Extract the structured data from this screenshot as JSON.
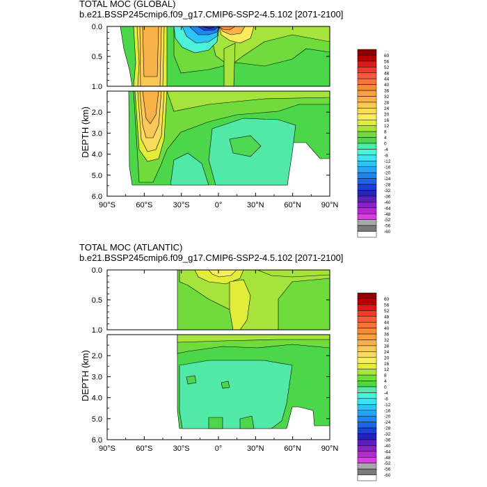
{
  "chart_data": [
    {
      "type": "heatmap",
      "title": "TOTAL MOC (GLOBAL)",
      "subtitle": "b.e21.BSSP245cmip6.f09_g17.CMIP6-SSP2-4.5.102 [2071-2100]",
      "ylabel": "DEPTH (km)",
      "xlabel": "",
      "xlim": [
        -90,
        90
      ],
      "ylim_upper": [
        0.0,
        1.0
      ],
      "ylim_lower": [
        1.0,
        6.0
      ],
      "x_tick_labels": [
        "90°S",
        "60°S",
        "30°S",
        "0°",
        "30°N",
        "60°N",
        "90°N"
      ],
      "y_tick_labels_upper": [
        "0.0",
        "0.5",
        "1.0"
      ],
      "y_tick_labels_lower": [
        "2.0",
        "3.0",
        "4.0",
        "5.0",
        "6.0"
      ],
      "colorbar_levels": [
        "60",
        "56",
        "52",
        "48",
        "44",
        "40",
        "36",
        "32",
        "28",
        "24",
        "20",
        "16",
        "12",
        "8",
        "4",
        "0",
        "-4",
        "-8",
        "-12",
        "-16",
        "-20",
        "-24",
        "-28",
        "-32",
        "-36",
        "-40",
        "-44",
        "-48",
        "-52",
        "-56",
        "-60"
      ],
      "features": [
        {
          "feature": "southern deep cell maximum",
          "lat": -48,
          "depth_km": 0.3,
          "value": 26
        },
        {
          "feature": "tropical cell (negative)",
          "lat": -10,
          "depth_km": 0.02,
          "value": -38
        },
        {
          "feature": "tropical cell (positive)",
          "lat": 5,
          "depth_km": 0.05,
          "value": 28
        },
        {
          "feature": "abyssal cell",
          "lat": 10,
          "depth_km": 4.2,
          "value": -6
        }
      ]
    },
    {
      "type": "heatmap",
      "title": "TOTAL MOC (ATLANTIC)",
      "subtitle": "b.e21.BSSP245cmip6.f09_g17.CMIP6-SSP2-4.5.102 [2071-2100]",
      "ylabel": "DEPTH (km)",
      "xlabel": "",
      "xlim": [
        -90,
        90
      ],
      "ylim_upper": [
        0.0,
        1.0
      ],
      "ylim_lower": [
        1.0,
        6.0
      ],
      "x_tick_labels": [
        "90°S",
        "60°S",
        "30°S",
        "0°",
        "30°N",
        "60°N",
        "90°N"
      ],
      "y_tick_labels_upper": [
        "0.0",
        "0.5",
        "1.0"
      ],
      "y_tick_labels_lower": [
        "2.0",
        "3.0",
        "4.0",
        "5.0",
        "6.0"
      ],
      "colorbar_levels": [
        "60",
        "56",
        "52",
        "48",
        "44",
        "40",
        "36",
        "32",
        "28",
        "24",
        "20",
        "16",
        "12",
        "8",
        "4",
        "0",
        "-4",
        "-8",
        "-12",
        "-16",
        "-20",
        "-24",
        "-28",
        "-32",
        "-36",
        "-40",
        "-44",
        "-48",
        "-52",
        "-56",
        "-60"
      ],
      "features": [
        {
          "feature": "AMOC upper cell",
          "lat": 30,
          "depth_km": 0.8,
          "value": 10
        },
        {
          "feature": "abyssal cell",
          "lat": 15,
          "depth_km": 4.0,
          "value": -6
        }
      ]
    }
  ],
  "colorbar_colors": [
    "#8b0000",
    "#b40000",
    "#d81a1a",
    "#ee3b2c",
    "#f55a3c",
    "#f9743a",
    "#f98a37",
    "#f9a03c",
    "#f9b24a",
    "#fac857",
    "#fadb5e",
    "#f8ec5a",
    "#e0ee3a",
    "#a6e33b",
    "#6fdb3c",
    "#4cd64a",
    "#52e8a8",
    "#4cf2d8",
    "#3de2f5",
    "#2bc4f6",
    "#24a6f3",
    "#2185ef",
    "#1f63e6",
    "#1c3fd6",
    "#2722bd",
    "#5a1fc0",
    "#8b20c7",
    "#b428cf",
    "#d83fe0",
    "#a8a8a8",
    "#7a7a7a",
    "#ffffff"
  ]
}
